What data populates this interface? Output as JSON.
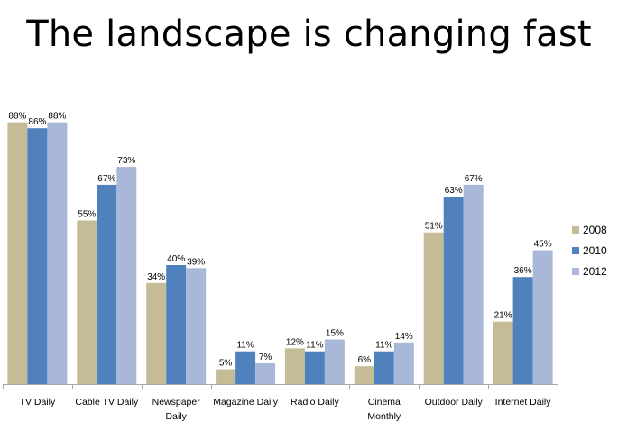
{
  "page": {
    "title": "The landscape is changing fast"
  },
  "chart_data": {
    "type": "bar",
    "title": "The landscape is changing fast",
    "xlabel": "",
    "ylabel": "",
    "ylim": [
      0,
      100
    ],
    "grid": false,
    "legend_position": "right",
    "value_suffix": "%",
    "categories": [
      [
        "TV Daily"
      ],
      [
        "Cable TV Daily"
      ],
      [
        "Newspaper",
        "Daily"
      ],
      [
        "Magazine Daily"
      ],
      [
        "Radio Daily"
      ],
      [
        "Cinema",
        "Monthly"
      ],
      [
        "Outdoor Daily"
      ],
      [
        "Internet Daily"
      ]
    ],
    "series": [
      {
        "name": "2008",
        "color": "#C5BC97",
        "values": [
          88,
          55,
          34,
          5,
          12,
          6,
          51,
          21
        ]
      },
      {
        "name": "2010",
        "color": "#4F81BD",
        "values": [
          86,
          67,
          40,
          11,
          11,
          11,
          63,
          36
        ]
      },
      {
        "name": "2012",
        "color": "#A9B8D9",
        "values": [
          88,
          73,
          39,
          7,
          15,
          14,
          67,
          45
        ]
      }
    ]
  }
}
